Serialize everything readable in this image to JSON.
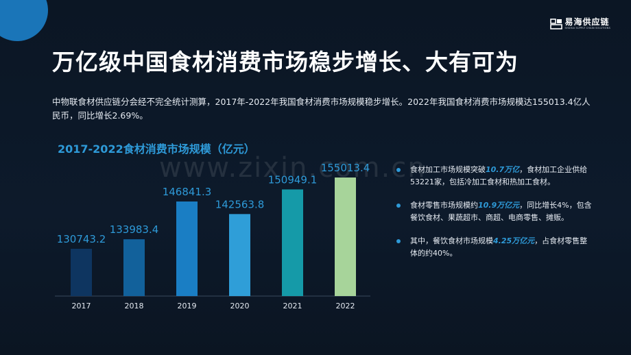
{
  "logo": {
    "name": "易海供应链",
    "subtitle": "SHUHAI SUPPLY CHAIN SOLUTIONS"
  },
  "title": "万亿级中国食材消费市场稳步增长、大有可为",
  "description": "中物联食材供应链分会经不完全统计测算，2017年-2022年我国食材消费市场规模稳步增长。2022年我国食材消费市场规模达155013.4亿人民币，同比增长2.69%。",
  "watermark": "www.zixin.com.cn",
  "chart_data": {
    "type": "bar",
    "title": "2017-2022食材消费市场规模（亿元）",
    "categories": [
      "2017",
      "2018",
      "2019",
      "2020",
      "2021",
      "2022"
    ],
    "values": [
      130743.2,
      133983.4,
      146841.3,
      142563.8,
      150949.1,
      155013.4
    ],
    "value_labels": [
      "130743.2",
      "133983.4",
      "146841.3",
      "142563.8",
      "150949.1",
      "155013.4"
    ],
    "colors": [
      "#0e3560",
      "#12619b",
      "#1a7ec4",
      "#2f9ed8",
      "#159aa8",
      "#a7d49a"
    ],
    "label_color": "#2e9ad8",
    "ylim": [
      120000,
      160000
    ],
    "grid": false,
    "legend": "none"
  },
  "notes": [
    {
      "before": "食材加工市场规模突破",
      "highlight": "10.7万亿",
      "after": "，食材加工企业供给53221家，包括冷加工食材和热加工食材。"
    },
    {
      "before": "食材零售市场规模约",
      "highlight": "10.9万亿元",
      "after": "，同比增长4%，包含餐饮食材、果蔬超市、商超、电商零售、摊贩。"
    },
    {
      "before": "其中，餐饮食材市场规模",
      "highlight": "4.25万亿元",
      "after": "，占食材零售整体的约40%。"
    }
  ]
}
